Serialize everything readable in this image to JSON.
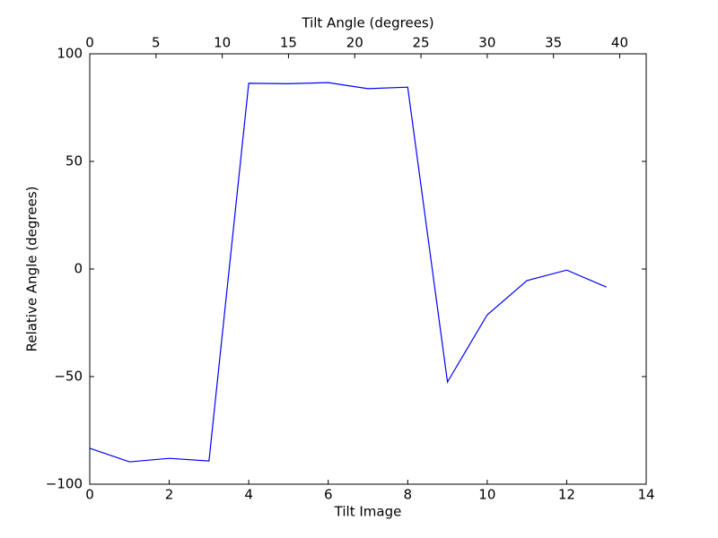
{
  "chart_data": {
    "type": "line",
    "xlabel": "Tilt Image",
    "ylabel": "Relative Angle (degrees)",
    "x2label": "Tilt Angle (degrees)",
    "x": [
      0,
      1,
      2,
      3,
      4,
      5,
      6,
      7,
      8,
      9,
      10,
      11,
      12,
      13
    ],
    "series": [
      {
        "color": "#0000ff",
        "values": [
          -83.3,
          -89.6,
          -88,
          -89.2,
          86.3,
          86.1,
          86.6,
          83.8,
          84.5,
          -52.5,
          -21.3,
          -5.4,
          -0.5,
          -8.4
        ]
      }
    ],
    "xlim": [
      0,
      14
    ],
    "xticks": [
      0,
      2,
      4,
      6,
      8,
      10,
      12,
      14
    ],
    "x2lim": [
      0,
      42
    ],
    "x2ticks": [
      0,
      5,
      10,
      15,
      20,
      25,
      30,
      35,
      40
    ],
    "ylim": [
      -100,
      100
    ],
    "yticks": [
      {
        "value": -100,
        "label": "−100"
      },
      {
        "value": -50,
        "label": "−50"
      },
      0,
      50,
      100
    ]
  }
}
